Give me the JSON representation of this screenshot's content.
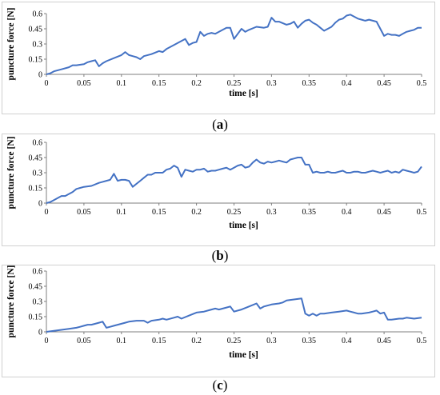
{
  "captions": [
    {
      "open": "(",
      "letter": "a",
      "close": ")"
    },
    {
      "open": "(",
      "letter": "b",
      "close": ")"
    },
    {
      "open": "(",
      "letter": "c",
      "close": ")"
    }
  ],
  "chart_data": [
    {
      "type": "line",
      "panel": "a",
      "xlabel": "time [s]",
      "ylabel": "puncture force [N]",
      "xlim": [
        0,
        0.5
      ],
      "ylim": [
        0,
        0.6
      ],
      "xticks": [
        "0",
        "0.05",
        "0.1",
        "0.15",
        "0.2",
        "0.25",
        "0.3",
        "0.35",
        "0.4",
        "0.45",
        "0.5"
      ],
      "yticks": [
        "0",
        "0.15",
        "0.3",
        "0.45",
        "0.6"
      ],
      "grid": false,
      "color": "#4472c4",
      "x": [
        0,
        0.005,
        0.01,
        0.02,
        0.03,
        0.035,
        0.04,
        0.05,
        0.055,
        0.06,
        0.065,
        0.07,
        0.075,
        0.08,
        0.09,
        0.1,
        0.105,
        0.11,
        0.115,
        0.12,
        0.125,
        0.13,
        0.14,
        0.15,
        0.155,
        0.16,
        0.17,
        0.18,
        0.185,
        0.19,
        0.195,
        0.2,
        0.205,
        0.21,
        0.215,
        0.22,
        0.225,
        0.23,
        0.24,
        0.245,
        0.25,
        0.255,
        0.26,
        0.265,
        0.27,
        0.28,
        0.29,
        0.295,
        0.3,
        0.305,
        0.31,
        0.32,
        0.325,
        0.33,
        0.335,
        0.34,
        0.345,
        0.35,
        0.355,
        0.36,
        0.365,
        0.37,
        0.375,
        0.38,
        0.385,
        0.39,
        0.395,
        0.4,
        0.405,
        0.41,
        0.415,
        0.42,
        0.425,
        0.43,
        0.435,
        0.44,
        0.445,
        0.45,
        0.455,
        0.46,
        0.465,
        0.47,
        0.475,
        0.48,
        0.485,
        0.49,
        0.495,
        0.5
      ],
      "y": [
        0,
        0.01,
        0.03,
        0.05,
        0.07,
        0.09,
        0.09,
        0.1,
        0.12,
        0.13,
        0.14,
        0.08,
        0.11,
        0.13,
        0.16,
        0.19,
        0.22,
        0.19,
        0.18,
        0.17,
        0.15,
        0.18,
        0.2,
        0.23,
        0.22,
        0.25,
        0.29,
        0.33,
        0.35,
        0.29,
        0.31,
        0.32,
        0.42,
        0.38,
        0.4,
        0.41,
        0.4,
        0.42,
        0.46,
        0.46,
        0.35,
        0.4,
        0.45,
        0.42,
        0.44,
        0.47,
        0.46,
        0.47,
        0.56,
        0.52,
        0.52,
        0.49,
        0.5,
        0.52,
        0.46,
        0.5,
        0.53,
        0.54,
        0.51,
        0.49,
        0.46,
        0.43,
        0.45,
        0.47,
        0.51,
        0.54,
        0.55,
        0.58,
        0.59,
        0.57,
        0.55,
        0.54,
        0.53,
        0.54,
        0.53,
        0.52,
        0.45,
        0.38,
        0.4,
        0.39,
        0.39,
        0.38,
        0.4,
        0.42,
        0.43,
        0.44,
        0.46,
        0.46
      ]
    },
    {
      "type": "line",
      "panel": "b",
      "xlabel": "time [s]",
      "ylabel": "puncture force [N]",
      "xlim": [
        0,
        0.5
      ],
      "ylim": [
        0,
        0.6
      ],
      "xticks": [
        "0",
        "0.05",
        "0.1",
        "0.15",
        "0.2",
        "0.25",
        "0.3",
        "0.35",
        "0.4",
        "0.45",
        "0.5"
      ],
      "yticks": [
        "0",
        "0.15",
        "0.3",
        "0.45",
        "0.6"
      ],
      "grid": false,
      "color": "#4472c4",
      "x": [
        0,
        0.005,
        0.01,
        0.02,
        0.025,
        0.03,
        0.035,
        0.04,
        0.045,
        0.05,
        0.06,
        0.07,
        0.075,
        0.08,
        0.085,
        0.09,
        0.095,
        0.1,
        0.105,
        0.11,
        0.115,
        0.12,
        0.125,
        0.13,
        0.135,
        0.14,
        0.145,
        0.15,
        0.155,
        0.16,
        0.165,
        0.17,
        0.175,
        0.18,
        0.185,
        0.19,
        0.195,
        0.2,
        0.205,
        0.21,
        0.215,
        0.22,
        0.225,
        0.23,
        0.235,
        0.24,
        0.245,
        0.25,
        0.255,
        0.26,
        0.265,
        0.27,
        0.275,
        0.28,
        0.285,
        0.29,
        0.295,
        0.3,
        0.305,
        0.31,
        0.315,
        0.32,
        0.325,
        0.33,
        0.335,
        0.34,
        0.345,
        0.35,
        0.355,
        0.36,
        0.365,
        0.37,
        0.375,
        0.38,
        0.385,
        0.39,
        0.395,
        0.4,
        0.405,
        0.41,
        0.415,
        0.42,
        0.425,
        0.43,
        0.435,
        0.44,
        0.445,
        0.45,
        0.455,
        0.46,
        0.465,
        0.47,
        0.475,
        0.48,
        0.485,
        0.49,
        0.495,
        0.5
      ],
      "y": [
        0,
        0.01,
        0.03,
        0.07,
        0.07,
        0.09,
        0.11,
        0.14,
        0.15,
        0.16,
        0.17,
        0.2,
        0.21,
        0.22,
        0.23,
        0.29,
        0.22,
        0.23,
        0.23,
        0.22,
        0.16,
        0.19,
        0.22,
        0.25,
        0.28,
        0.28,
        0.3,
        0.3,
        0.3,
        0.33,
        0.34,
        0.37,
        0.35,
        0.26,
        0.33,
        0.32,
        0.31,
        0.33,
        0.33,
        0.34,
        0.31,
        0.32,
        0.32,
        0.33,
        0.34,
        0.35,
        0.33,
        0.35,
        0.37,
        0.38,
        0.35,
        0.36,
        0.4,
        0.43,
        0.4,
        0.39,
        0.41,
        0.4,
        0.41,
        0.42,
        0.41,
        0.4,
        0.43,
        0.44,
        0.45,
        0.45,
        0.38,
        0.38,
        0.3,
        0.31,
        0.3,
        0.3,
        0.31,
        0.3,
        0.3,
        0.31,
        0.32,
        0.3,
        0.3,
        0.31,
        0.31,
        0.3,
        0.3,
        0.31,
        0.32,
        0.31,
        0.3,
        0.31,
        0.32,
        0.3,
        0.31,
        0.3,
        0.33,
        0.32,
        0.31,
        0.3,
        0.31,
        0.36
      ]
    },
    {
      "type": "line",
      "panel": "c",
      "xlabel": "time [s]",
      "ylabel": "puncture force [N]",
      "xlim": [
        0,
        0.5
      ],
      "ylim": [
        0,
        0.6
      ],
      "xticks": [
        "0",
        "0.05",
        "0.1",
        "0.15",
        "0.2",
        "0.25",
        "0.3",
        "0.35",
        "0.4",
        "0.45",
        "0.5"
      ],
      "yticks": [
        "0",
        "0.15",
        "0.3",
        "0.45",
        "0.6"
      ],
      "grid": false,
      "color": "#4472c4",
      "x": [
        0,
        0.01,
        0.02,
        0.03,
        0.04,
        0.045,
        0.05,
        0.055,
        0.06,
        0.065,
        0.07,
        0.075,
        0.08,
        0.085,
        0.09,
        0.1,
        0.105,
        0.11,
        0.12,
        0.13,
        0.135,
        0.14,
        0.15,
        0.155,
        0.16,
        0.17,
        0.175,
        0.18,
        0.19,
        0.2,
        0.21,
        0.22,
        0.225,
        0.23,
        0.24,
        0.245,
        0.25,
        0.26,
        0.27,
        0.28,
        0.285,
        0.29,
        0.3,
        0.31,
        0.315,
        0.32,
        0.33,
        0.34,
        0.345,
        0.35,
        0.355,
        0.36,
        0.365,
        0.37,
        0.38,
        0.39,
        0.4,
        0.405,
        0.41,
        0.415,
        0.42,
        0.43,
        0.435,
        0.44,
        0.445,
        0.45,
        0.455,
        0.46,
        0.47,
        0.475,
        0.48,
        0.49,
        0.5
      ],
      "y": [
        0,
        0.01,
        0.02,
        0.03,
        0.04,
        0.05,
        0.06,
        0.07,
        0.07,
        0.08,
        0.09,
        0.1,
        0.04,
        0.05,
        0.06,
        0.08,
        0.09,
        0.1,
        0.11,
        0.11,
        0.09,
        0.11,
        0.12,
        0.13,
        0.12,
        0.14,
        0.15,
        0.13,
        0.16,
        0.19,
        0.2,
        0.22,
        0.23,
        0.22,
        0.24,
        0.25,
        0.2,
        0.22,
        0.25,
        0.28,
        0.23,
        0.25,
        0.27,
        0.28,
        0.29,
        0.31,
        0.32,
        0.33,
        0.18,
        0.16,
        0.18,
        0.16,
        0.18,
        0.18,
        0.19,
        0.2,
        0.21,
        0.2,
        0.19,
        0.18,
        0.18,
        0.19,
        0.2,
        0.21,
        0.18,
        0.19,
        0.12,
        0.12,
        0.13,
        0.13,
        0.14,
        0.13,
        0.14
      ]
    }
  ]
}
